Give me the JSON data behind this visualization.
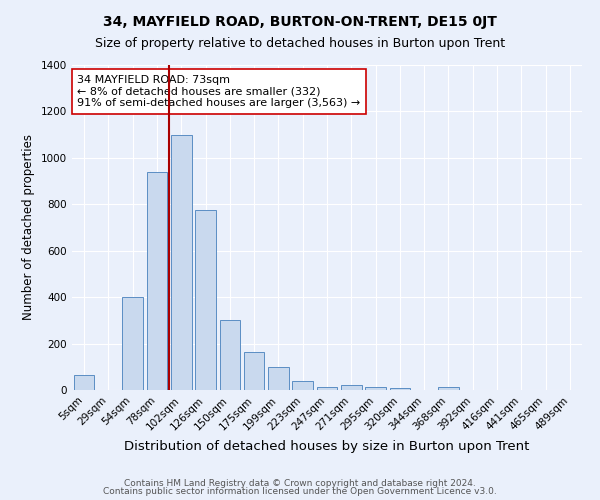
{
  "title": "34, MAYFIELD ROAD, BURTON-ON-TRENT, DE15 0JT",
  "subtitle": "Size of property relative to detached houses in Burton upon Trent",
  "xlabel": "Distribution of detached houses by size in Burton upon Trent",
  "ylabel": "Number of detached properties",
  "bar_labels": [
    "5sqm",
    "29sqm",
    "54sqm",
    "78sqm",
    "102sqm",
    "126sqm",
    "150sqm",
    "175sqm",
    "199sqm",
    "223sqm",
    "247sqm",
    "271sqm",
    "295sqm",
    "320sqm",
    "344sqm",
    "368sqm",
    "392sqm",
    "416sqm",
    "441sqm",
    "465sqm",
    "489sqm"
  ],
  "bar_values": [
    65,
    0,
    400,
    940,
    1100,
    775,
    300,
    162,
    98,
    38,
    15,
    20,
    15,
    8,
    0,
    12,
    0,
    0,
    0,
    0,
    0
  ],
  "bar_color": "#c9d9ee",
  "bar_edge_color": "#5b8ec4",
  "background_color": "#eaf0fb",
  "vline_x_index": 3.5,
  "vline_color": "#aa0000",
  "annotation_line1": "34 MAYFIELD ROAD: 73sqm",
  "annotation_line2": "← 8% of detached houses are smaller (332)",
  "annotation_line3": "91% of semi-detached houses are larger (3,563) →",
  "annotation_box_color": "white",
  "annotation_box_edge_color": "#cc0000",
  "ylim": [
    0,
    1400
  ],
  "yticks": [
    0,
    200,
    400,
    600,
    800,
    1000,
    1200,
    1400
  ],
  "footer1": "Contains HM Land Registry data © Crown copyright and database right 2024.",
  "footer2": "Contains public sector information licensed under the Open Government Licence v3.0.",
  "title_fontsize": 10,
  "subtitle_fontsize": 9,
  "xlabel_fontsize": 9.5,
  "ylabel_fontsize": 8.5,
  "tick_fontsize": 7.5,
  "annotation_fontsize": 8,
  "footer_fontsize": 6.5,
  "grid_color": "#ffffff"
}
